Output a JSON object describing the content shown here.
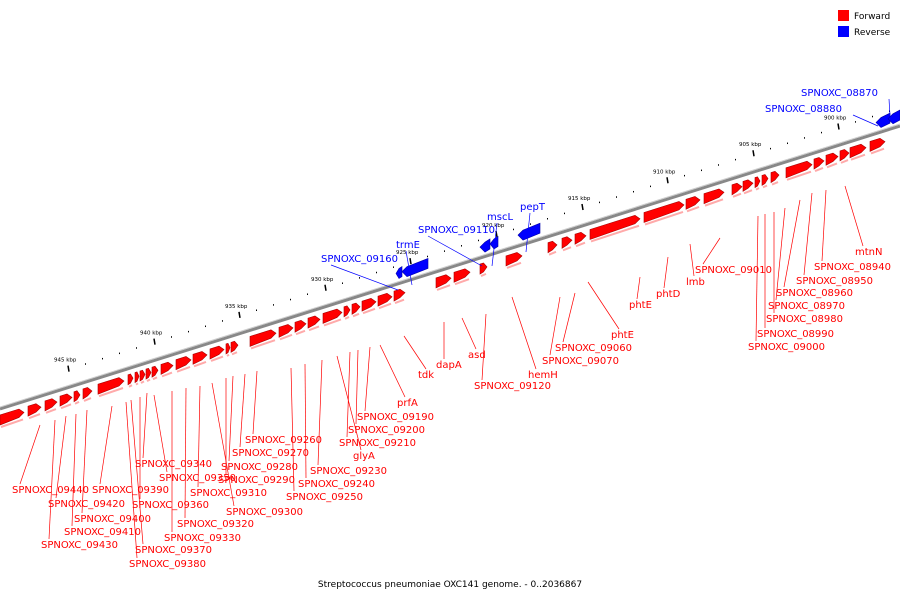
{
  "legend": [
    {
      "label": "Forward",
      "color": "#ff0000"
    },
    {
      "label": "Reverse",
      "color": "#0000ff"
    }
  ],
  "caption": "Streptococcus pneumoniae OXC141 genome. - 0..2036867",
  "colors": {
    "forward": "#ff0000",
    "forward_dark": "#aa0000",
    "reverse": "#0000ff",
    "reverse_dark": "#0000aa",
    "backbone": "#888888"
  },
  "scale_ticks": [
    "900 kbp",
    "905 kbp",
    "910 kbp",
    "915 kbp",
    "920 kbp",
    "925 kbp",
    "930 kbp",
    "935 kbp",
    "940 kbp",
    "945 kbp"
  ],
  "forward_labels": [
    "mtnN",
    "SPNOXC_08940",
    "SPNOXC_08950",
    "SPNOXC_08960",
    "SPNOXC_08970",
    "SPNOXC_08980",
    "SPNOXC_08990",
    "SPNOXC_09000",
    "SPNOXC_09010",
    "lmb",
    "phtD",
    "phtE",
    "phtE",
    "SPNOXC_09060",
    "SPNOXC_09070",
    "hemH",
    "SPNOXC_09120",
    "asd",
    "dapA",
    "tdk",
    "prfA",
    "SPNOXC_09190",
    "SPNOXC_09200",
    "SPNOXC_09210",
    "glyA",
    "SPNOXC_09230",
    "SPNOXC_09240",
    "SPNOXC_09250",
    "SPNOXC_09260",
    "SPNOXC_09270",
    "SPNOXC_09280",
    "SPNOXC_09290",
    "SPNOXC_09300",
    "SPNOXC_09310",
    "SPNOXC_09320",
    "SPNOXC_09330",
    "SPNOXC_09340",
    "SPNOXC_09350",
    "SPNOXC_09360",
    "SPNOXC_09370",
    "SPNOXC_09380",
    "SPNOXC_09390",
    "SPNOXC_09400",
    "SPNOXC_09410",
    "SPNOXC_09420",
    "SPNOXC_09430",
    "SPNOXC_09440"
  ],
  "reverse_labels": [
    "SPNOXC_08870",
    "SPNOXC_08880",
    "pepT",
    "mscL",
    "SPNOXC_09110",
    "trmE",
    "SPNOXC_09160"
  ]
}
